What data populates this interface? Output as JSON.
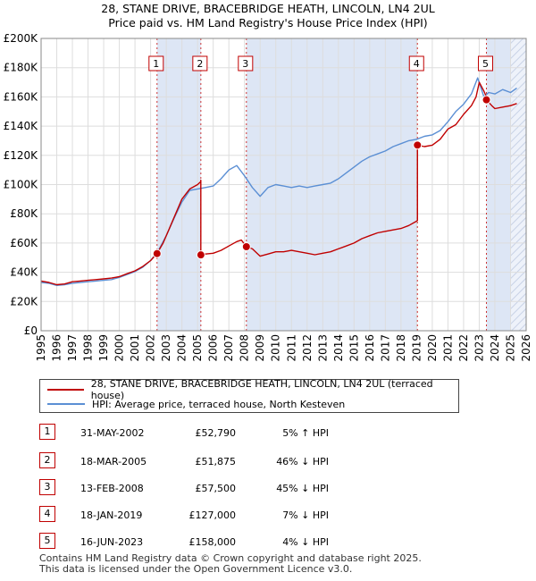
{
  "title_line1": "28, STANE DRIVE, BRACEBRIDGE HEATH, LINCOLN, LN4 2UL",
  "title_line2": "Price paid vs. HM Land Registry's House Price Index (HPI)",
  "colors": {
    "property": "#c00000",
    "hpi": "#5b8fd4",
    "band": "#dde6f5",
    "grid": "#dddddd",
    "marker_line": "#cc3333"
  },
  "legend": {
    "property_label": "28, STANE DRIVE, BRACEBRIDGE HEATH, LINCOLN, LN4 2UL (terraced house)",
    "hpi_label": "HPI: Average price, terraced house, North Kesteven"
  },
  "transactions": [
    {
      "num": "1",
      "date": "31-MAY-2002",
      "price": "£52,790",
      "hpi_diff": "5% ↑ HPI"
    },
    {
      "num": "2",
      "date": "18-MAR-2005",
      "price": "£51,875",
      "hpi_diff": "46% ↓ HPI"
    },
    {
      "num": "3",
      "date": "13-FEB-2008",
      "price": "£57,500",
      "hpi_diff": "45% ↓ HPI"
    },
    {
      "num": "4",
      "date": "18-JAN-2019",
      "price": "£127,000",
      "hpi_diff": "7% ↓ HPI"
    },
    {
      "num": "5",
      "date": "16-JUN-2023",
      "price": "£158,000",
      "hpi_diff": "4% ↓ HPI"
    }
  ],
  "footer_line1": "Contains HM Land Registry data © Crown copyright and database right 2025.",
  "footer_line2": "This data is licensed under the Open Government Licence v3.0.",
  "chart_data": {
    "type": "line",
    "title": "28, STANE DRIVE, BRACEBRIDGE HEATH, LINCOLN, LN4 2UL — Price paid vs. HM Land Registry's House Price Index (HPI)",
    "xlim": [
      1995,
      2026
    ],
    "ylim": [
      0,
      200000
    ],
    "x_ticks": [
      "1995",
      "1996",
      "1997",
      "1998",
      "1999",
      "2000",
      "2001",
      "2002",
      "2003",
      "2004",
      "2005",
      "2006",
      "2007",
      "2008",
      "2009",
      "2010",
      "2011",
      "2012",
      "2013",
      "2014",
      "2015",
      "2016",
      "2017",
      "2018",
      "2019",
      "2020",
      "2021",
      "2022",
      "2023",
      "2024",
      "2025",
      "2026"
    ],
    "y_ticks": [
      {
        "value": 0,
        "label": "£0"
      },
      {
        "value": 20000,
        "label": "£20K"
      },
      {
        "value": 40000,
        "label": "£40K"
      },
      {
        "value": 60000,
        "label": "£60K"
      },
      {
        "value": 80000,
        "label": "£80K"
      },
      {
        "value": 100000,
        "label": "£100K"
      },
      {
        "value": 120000,
        "label": "£120K"
      },
      {
        "value": 140000,
        "label": "£140K"
      },
      {
        "value": 160000,
        "label": "£160K"
      },
      {
        "value": 180000,
        "label": "£180K"
      },
      {
        "value": 200000,
        "label": "£200K"
      }
    ],
    "shaded_future_from": 2025.0,
    "sales": [
      {
        "label": "1",
        "x": 2002.41,
        "y": 52790
      },
      {
        "label": "2",
        "x": 2005.21,
        "y": 51875
      },
      {
        "label": "3",
        "x": 2008.12,
        "y": 57500
      },
      {
        "label": "4",
        "x": 2019.05,
        "y": 127000
      },
      {
        "label": "5",
        "x": 2023.46,
        "y": 158000
      }
    ],
    "band_ranges": [
      [
        2002.41,
        2005.21
      ],
      [
        2008.12,
        2019.05
      ],
      [
        2023.46,
        2025.0
      ]
    ],
    "series": [
      {
        "name": "28, STANE DRIVE, BRACEBRIDGE HEATH, LINCOLN, LN4 2UL (terraced house)",
        "x": [
          1995.0,
          1995.5,
          1996.0,
          1996.5,
          1997.0,
          1997.5,
          1998.0,
          1998.5,
          1999.0,
          1999.5,
          2000.0,
          2000.5,
          2001.0,
          2001.5,
          2002.0,
          2002.41,
          2002.41,
          2002.8,
          2003.2,
          2003.6,
          2004.0,
          2004.5,
          2005.0,
          2005.2,
          2005.21,
          2005.21,
          2005.5,
          2006.0,
          2006.5,
          2007.0,
          2007.5,
          2007.8,
          2008.12,
          2008.12,
          2008.5,
          2009.0,
          2009.5,
          2010.0,
          2010.5,
          2011.0,
          2011.5,
          2012.0,
          2012.5,
          2013.0,
          2013.5,
          2014.0,
          2014.5,
          2015.0,
          2015.5,
          2016.0,
          2016.5,
          2017.0,
          2017.5,
          2018.0,
          2018.5,
          2019.0,
          2019.05,
          2019.05,
          2019.5,
          2020.0,
          2020.5,
          2021.0,
          2021.5,
          2022.0,
          2022.5,
          2022.8,
          2023.0,
          2023.3,
          2023.46,
          2023.46,
          2023.8,
          2024.0,
          2024.5,
          2025.0,
          2025.4
        ],
        "values": [
          34000,
          33000,
          31500,
          32000,
          33500,
          34000,
          34500,
          35000,
          35500,
          36000,
          37000,
          39000,
          41000,
          44000,
          48000,
          52790,
          52790,
          60000,
          70000,
          80000,
          90000,
          97000,
          100000,
          102000,
          103000,
          51875,
          52500,
          53000,
          55000,
          58000,
          61000,
          62000,
          57500,
          57500,
          56000,
          51000,
          52500,
          54000,
          54000,
          55000,
          54000,
          53000,
          52000,
          53000,
          54000,
          56000,
          58000,
          60000,
          63000,
          65000,
          67000,
          68000,
          69000,
          70000,
          72000,
          75000,
          75500,
          127000,
          126000,
          127000,
          131000,
          138000,
          141000,
          148000,
          154000,
          160000,
          170000,
          164000,
          160000,
          158000,
          154000,
          152000,
          153000,
          154000,
          155500
        ]
      },
      {
        "name": "HPI: Average price, terraced house, North Kesteven",
        "x": [
          1995.0,
          1995.5,
          1996.0,
          1996.5,
          1997.0,
          1997.5,
          1998.0,
          1998.5,
          1999.0,
          1999.5,
          2000.0,
          2000.5,
          2001.0,
          2001.5,
          2002.0,
          2002.5,
          2003.0,
          2003.5,
          2004.0,
          2004.5,
          2005.0,
          2005.5,
          2006.0,
          2006.5,
          2007.0,
          2007.5,
          2008.0,
          2008.5,
          2009.0,
          2009.5,
          2010.0,
          2010.5,
          2011.0,
          2011.5,
          2012.0,
          2012.5,
          2013.0,
          2013.5,
          2014.0,
          2014.5,
          2015.0,
          2015.5,
          2016.0,
          2016.5,
          2017.0,
          2017.5,
          2018.0,
          2018.5,
          2019.0,
          2019.5,
          2020.0,
          2020.5,
          2021.0,
          2021.5,
          2022.0,
          2022.5,
          2022.9,
          2023.3,
          2023.6,
          2024.0,
          2024.5,
          2025.0,
          2025.4
        ],
        "values": [
          33000,
          32500,
          31000,
          31500,
          32500,
          33000,
          33500,
          34000,
          34500,
          35000,
          36500,
          38500,
          40500,
          43500,
          48000,
          55000,
          65000,
          77000,
          88000,
          96000,
          97000,
          98000,
          99000,
          104000,
          110000,
          113000,
          106000,
          98000,
          92000,
          98000,
          100000,
          99000,
          98000,
          99000,
          98000,
          99000,
          100000,
          101000,
          104000,
          108000,
          112000,
          116000,
          119000,
          121000,
          123000,
          126000,
          128000,
          130000,
          131000,
          133000,
          134000,
          137000,
          143000,
          150000,
          155000,
          162000,
          173000,
          160000,
          163000,
          162000,
          165000,
          163000,
          166000
        ]
      }
    ]
  }
}
